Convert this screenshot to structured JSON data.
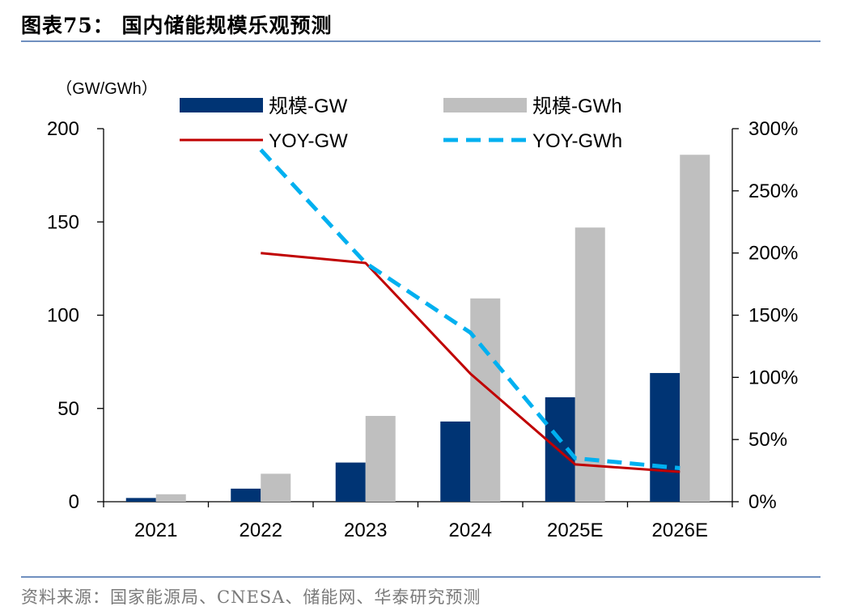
{
  "header": {
    "title": "图表75： 国内储能规模乐观预测"
  },
  "footer": {
    "source": "资料来源：国家能源局、CNESA、储能网、华泰研究预测"
  },
  "chart_data": {
    "type": "bar",
    "categories": [
      "2021",
      "2022",
      "2023",
      "2024",
      "2025E",
      "2026E"
    ],
    "ylabel": "（GW/GWh）",
    "ylim": [
      0,
      200
    ],
    "yticks": [
      "0",
      "50",
      "100",
      "150",
      "200"
    ],
    "y2lim": [
      0,
      300
    ],
    "y2ticks": [
      "0%",
      "50%",
      "100%",
      "150%",
      "200%",
      "250%",
      "300%"
    ],
    "legend_placement": "top",
    "series": [
      {
        "name": "规模-GW",
        "type": "bar",
        "axis": "left",
        "color": "#003474",
        "values": [
          2,
          7,
          21,
          43,
          56,
          69
        ]
      },
      {
        "name": "规模-GWh",
        "type": "bar",
        "axis": "left",
        "color": "#bfbfbf",
        "values": [
          4,
          15,
          46,
          109,
          147,
          186
        ]
      },
      {
        "name": "YOY-GW",
        "type": "line",
        "axis": "right",
        "color": "#c00000",
        "style": "solid",
        "values": [
          null,
          200,
          192,
          103,
          30,
          24
        ]
      },
      {
        "name": "YOY-GWh",
        "type": "line",
        "axis": "right",
        "color": "#00b0f0",
        "style": "dashed",
        "values": [
          null,
          283,
          192,
          136,
          35,
          27
        ]
      }
    ]
  }
}
